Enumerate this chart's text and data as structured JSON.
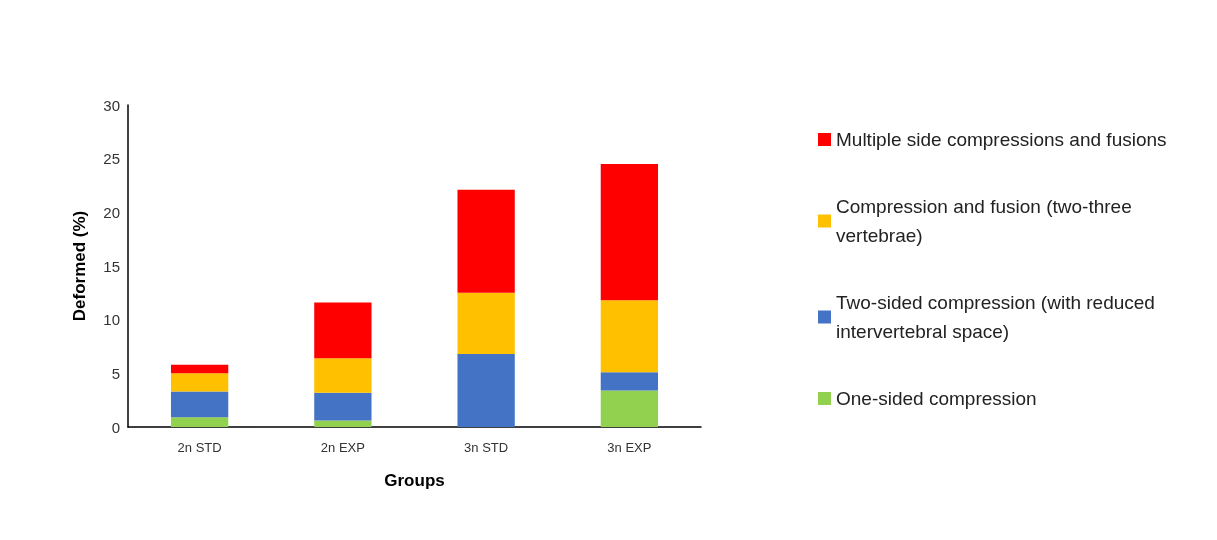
{
  "chart_data": {
    "type": "bar",
    "stacked": true,
    "xlabel": "Groups",
    "ylabel": "Deformed (%)",
    "categories": [
      "2n STD",
      "2n EXP",
      "3n STD",
      "3n EXP"
    ],
    "series": [
      {
        "name": "One-sided compression",
        "color": "#92d050",
        "values": [
          0.9,
          0.6,
          0,
          3.4
        ]
      },
      {
        "name": "Two-sided compression (with reduced intervertebral space)",
        "color": "#4472c4",
        "values": [
          2.4,
          2.6,
          6.8,
          1.7
        ]
      },
      {
        "name": "Compression and fusion (two-three vertebrae)",
        "color": "#ffc000",
        "values": [
          1.7,
          3.2,
          5.7,
          6.7
        ]
      },
      {
        "name": "Multiple side compressions and fusions",
        "color": "#ff0000",
        "values": [
          0.8,
          5.2,
          9.6,
          12.7
        ]
      }
    ],
    "ylim": [
      0,
      30
    ],
    "yticks": [
      0,
      5,
      10,
      15,
      20,
      25,
      30
    ],
    "grid": false,
    "legend": "right"
  }
}
